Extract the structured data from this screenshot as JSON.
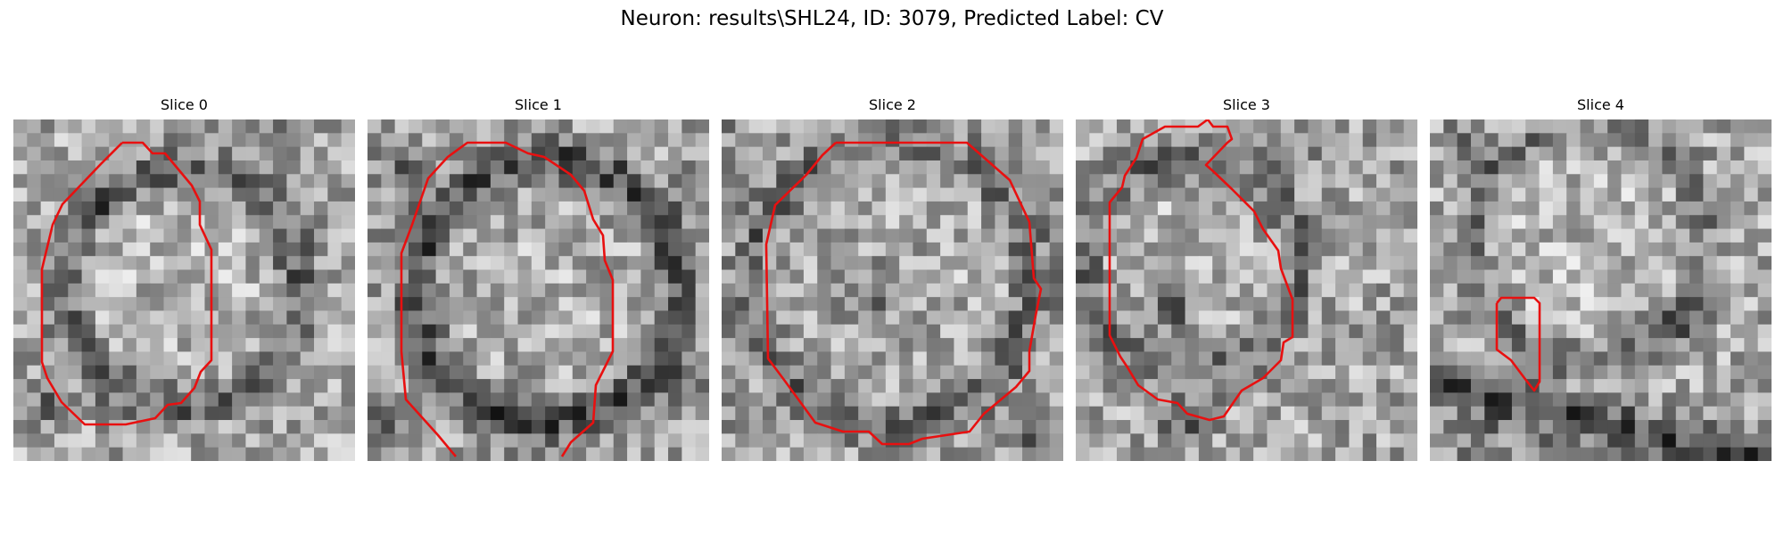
{
  "figure": {
    "title": "Neuron: results\\SHL24, ID: 3079, Predicted Label: CV",
    "contour_color": "#e81010"
  },
  "panels": [
    {
      "title": "Slice 0"
    },
    {
      "title": "Slice 1"
    },
    {
      "title": "Slice 2"
    },
    {
      "title": "Slice 3"
    },
    {
      "title": "Slice 4"
    }
  ]
}
